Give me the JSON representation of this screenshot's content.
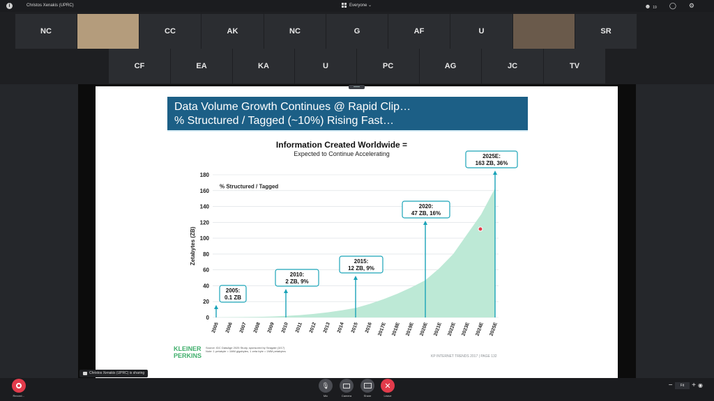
{
  "topbar": {
    "window_title": "Christos Xenakis (UPRC)",
    "view_label": "Everyone ⌄",
    "participants_count": "19"
  },
  "participants_row1": [
    "NC",
    "",
    "CC",
    "AK",
    "NC",
    "G",
    "AF",
    "U",
    "",
    "SR"
  ],
  "participants_row2": [
    "CF",
    "EA",
    "KA",
    "U",
    "PC",
    "AG",
    "JC",
    "TV"
  ],
  "slide": {
    "heading_line1": "Data Volume Growth Continues @ Rapid Clip…",
    "heading_line2": "% Structured / Tagged (~10%) Rising Fast…",
    "chart_title": "Information Created Worldwide =",
    "chart_subtitle": "Expected to Continue Accelerating",
    "legend_label": "% Structured / Tagged",
    "logo_line1": "KLEINER",
    "logo_line2": "PERKINS",
    "source_line1": "Source: IDC DataAge 2025 Study, sponsored by Seagate (3/17)",
    "source_line2": "Note: 1 petabyte = 1MM gigabytes, 1 zeta byte = 1MM petabytes",
    "footer_right": "KP INTERNET TRENDS 2017  |  PAGE 132"
  },
  "chart_data": {
    "type": "area",
    "ylabel": "Zetabytes (ZB)",
    "ylim": [
      0,
      180
    ],
    "yticks": [
      0,
      20,
      40,
      60,
      80,
      100,
      120,
      140,
      160,
      180
    ],
    "categories": [
      "2005",
      "2006",
      "2007",
      "2008",
      "2009",
      "2010",
      "2011",
      "2012",
      "2013",
      "2014",
      "2015",
      "2016",
      "2017E",
      "2018E",
      "2019E",
      "2020E",
      "2021E",
      "2022E",
      "2023E",
      "2024E",
      "2025E"
    ],
    "values": [
      0.1,
      0.3,
      0.5,
      0.8,
      1.2,
      2,
      3,
      4.5,
      6.5,
      9,
      12,
      17,
      23,
      30,
      38,
      47,
      62,
      80,
      105,
      130,
      163
    ],
    "annotations": [
      {
        "year": "2005",
        "line1": "2005:",
        "line2": "0.1 ZB"
      },
      {
        "year": "2010",
        "line1": "2010:",
        "line2": "2 ZB, 9%"
      },
      {
        "year": "2015",
        "line1": "2015:",
        "line2": "12 ZB, 9%"
      },
      {
        "year": "2020E",
        "line1": "2020:",
        "line2": "47 ZB, 16%"
      },
      {
        "year": "2025E",
        "line1": "2025E:",
        "line2": "163 ZB, 36%"
      }
    ],
    "fill_color": "#bde9d6",
    "accent_color": "#1aa3b8"
  },
  "sharing_banner": "Christos Xenakis (UPRC) is sharing",
  "controls": {
    "record": "Record…",
    "mic": "Mic",
    "camera": "Camera",
    "share": "Share",
    "leave": "Leave"
  },
  "zoom": {
    "fit": "Fit"
  }
}
